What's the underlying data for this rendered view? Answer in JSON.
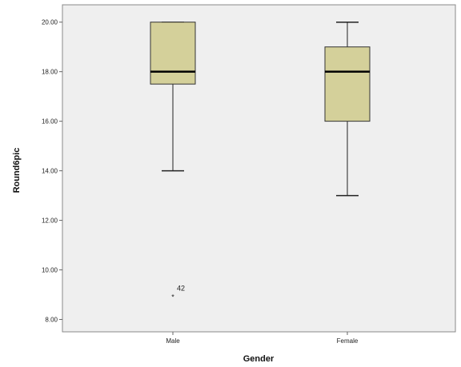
{
  "chart_data": {
    "type": "boxplot",
    "xlabel": "Gender",
    "ylabel": "Round6pic",
    "ylim": [
      7.5,
      20.7
    ],
    "yticks": [
      8.0,
      10.0,
      12.0,
      14.0,
      16.0,
      18.0,
      20.0
    ],
    "ytick_labels": [
      "8.00",
      "10.00",
      "12.00",
      "14.00",
      "16.00",
      "18.00",
      "20.00"
    ],
    "categories": [
      "Male",
      "Female"
    ],
    "boxes": [
      {
        "category": "Male",
        "whisker_low": 14.0,
        "q1": 17.5,
        "median": 18.0,
        "q3": 20.0,
        "whisker_high": 20.0,
        "outliers": [
          {
            "value": 9.0,
            "marker": "*",
            "label": "42"
          }
        ]
      },
      {
        "category": "Female",
        "whisker_low": 13.0,
        "q1": 16.0,
        "median": 18.0,
        "q3": 19.0,
        "whisker_high": 20.0,
        "outliers": []
      }
    ],
    "colors": {
      "box_fill": "#d4d09a",
      "box_stroke": "#333333",
      "plot_bg": "#efefef",
      "median": "#000000"
    },
    "grid": false,
    "legend": "none"
  }
}
